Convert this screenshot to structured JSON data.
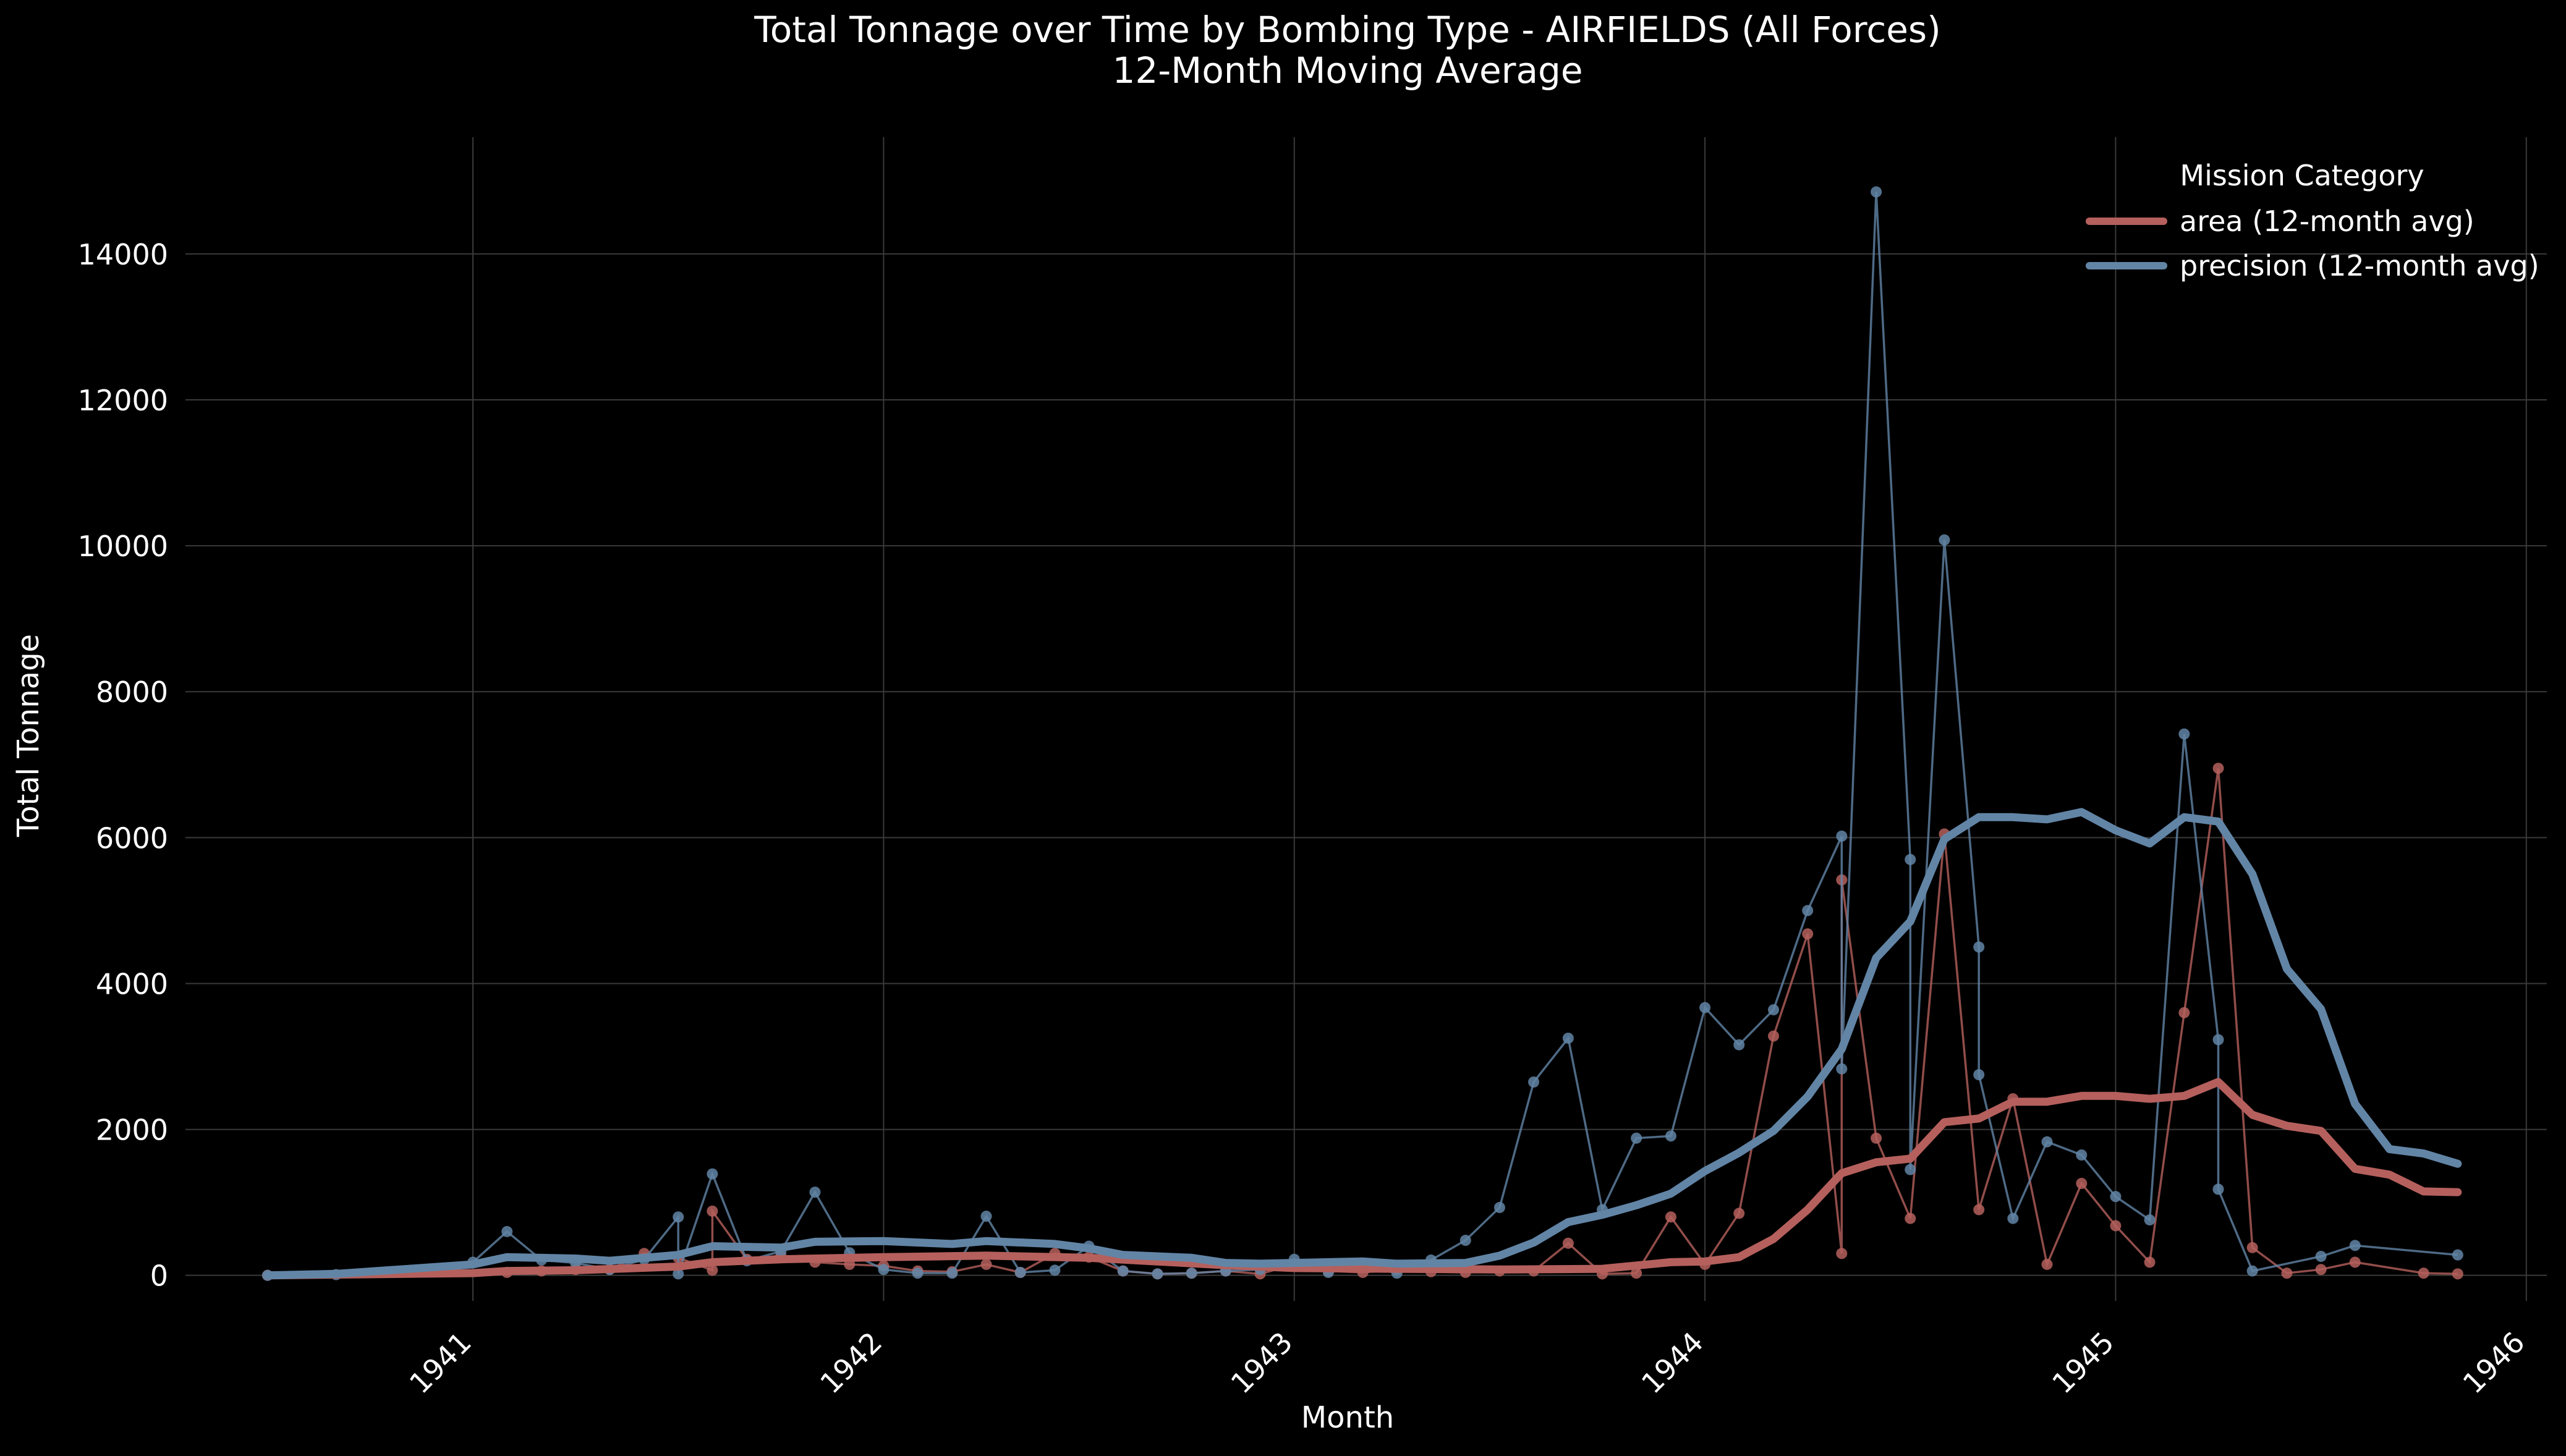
{
  "chart_data": {
    "type": "line",
    "title": "Total Tonnage over Time by Bombing Type - AIRFIELDS  (All Forces)",
    "subtitle": "12-Month Moving Average",
    "xlabel": "Month",
    "ylabel": "Total Tonnage",
    "xlim": [
      1940.3,
      1946.05
    ],
    "ylim": [
      -350,
      15600
    ],
    "x_ticks": [
      1941,
      1942,
      1943,
      1944,
      1945,
      1946
    ],
    "y_ticks": [
      0,
      2000,
      4000,
      6000,
      8000,
      10000,
      12000,
      14000
    ],
    "grid": true,
    "legend": {
      "title": "Mission Category",
      "placement": "top-right"
    },
    "colors": {
      "background": "#000000",
      "grid": "#3a3a3a",
      "text": "#ffffff",
      "area": "#b5605d",
      "precision": "#6285a6"
    },
    "series": [
      {
        "name": "area (12-month avg)",
        "kind": "moving_average",
        "color": "#b5605d",
        "points": [
          [
            1940.5,
            0
          ],
          [
            1940.667,
            10
          ],
          [
            1941.0,
            30
          ],
          [
            1941.083,
            60
          ],
          [
            1941.25,
            70
          ],
          [
            1941.5,
            120
          ],
          [
            1941.583,
            180
          ],
          [
            1941.75,
            220
          ],
          [
            1942.0,
            250
          ],
          [
            1942.25,
            270
          ],
          [
            1942.5,
            240
          ],
          [
            1942.667,
            190
          ],
          [
            1942.833,
            140
          ],
          [
            1942.917,
            120
          ],
          [
            1943.0,
            100
          ],
          [
            1943.25,
            90
          ],
          [
            1943.5,
            80
          ],
          [
            1943.75,
            90
          ],
          [
            1943.917,
            180
          ],
          [
            1944.0,
            190
          ],
          [
            1944.083,
            250
          ],
          [
            1944.167,
            500
          ],
          [
            1944.25,
            900
          ],
          [
            1944.333,
            1400
          ],
          [
            1944.417,
            1550
          ],
          [
            1944.5,
            1600
          ],
          [
            1944.583,
            2100
          ],
          [
            1944.667,
            2150
          ],
          [
            1944.75,
            2380
          ],
          [
            1944.833,
            2380
          ],
          [
            1944.917,
            2460
          ],
          [
            1945.0,
            2460
          ],
          [
            1945.083,
            2420
          ],
          [
            1945.167,
            2460
          ],
          [
            1945.25,
            2650
          ],
          [
            1945.333,
            2200
          ],
          [
            1945.417,
            2050
          ],
          [
            1945.5,
            1980
          ],
          [
            1945.583,
            1460
          ],
          [
            1945.667,
            1380
          ],
          [
            1945.75,
            1150
          ],
          [
            1945.833,
            1140
          ]
        ]
      },
      {
        "name": "precision (12-month avg)",
        "kind": "moving_average",
        "color": "#6285a6",
        "points": [
          [
            1940.5,
            0
          ],
          [
            1940.667,
            20
          ],
          [
            1941.0,
            150
          ],
          [
            1941.083,
            250
          ],
          [
            1941.25,
            230
          ],
          [
            1941.333,
            200
          ],
          [
            1941.5,
            280
          ],
          [
            1941.583,
            400
          ],
          [
            1941.75,
            380
          ],
          [
            1941.833,
            460
          ],
          [
            1942.0,
            470
          ],
          [
            1942.167,
            430
          ],
          [
            1942.25,
            470
          ],
          [
            1942.417,
            430
          ],
          [
            1942.5,
            370
          ],
          [
            1942.583,
            280
          ],
          [
            1942.75,
            240
          ],
          [
            1942.833,
            170
          ],
          [
            1942.917,
            160
          ],
          [
            1943.0,
            170
          ],
          [
            1943.167,
            190
          ],
          [
            1943.25,
            160
          ],
          [
            1943.417,
            170
          ],
          [
            1943.5,
            270
          ],
          [
            1943.583,
            450
          ],
          [
            1943.667,
            730
          ],
          [
            1943.75,
            830
          ],
          [
            1943.833,
            960
          ],
          [
            1943.917,
            1120
          ],
          [
            1944.0,
            1430
          ],
          [
            1944.083,
            1680
          ],
          [
            1944.167,
            1980
          ],
          [
            1944.25,
            2450
          ],
          [
            1944.333,
            3100
          ],
          [
            1944.417,
            4350
          ],
          [
            1944.5,
            4850
          ],
          [
            1944.583,
            5980
          ],
          [
            1944.667,
            6280
          ],
          [
            1944.75,
            6280
          ],
          [
            1944.833,
            6250
          ],
          [
            1944.917,
            6350
          ],
          [
            1945.0,
            6100
          ],
          [
            1945.083,
            5920
          ],
          [
            1945.167,
            6280
          ],
          [
            1945.25,
            6220
          ],
          [
            1945.333,
            5500
          ],
          [
            1945.417,
            4200
          ],
          [
            1945.5,
            3650
          ],
          [
            1945.583,
            2350
          ],
          [
            1945.667,
            1730
          ],
          [
            1945.75,
            1670
          ],
          [
            1945.833,
            1530
          ]
        ]
      },
      {
        "name": "area",
        "kind": "raw",
        "color": "#b5605d",
        "points": [
          [
            1940.5,
            0
          ],
          [
            1941.083,
            40
          ],
          [
            1941.167,
            60
          ],
          [
            1941.25,
            80
          ],
          [
            1941.333,
            80
          ],
          [
            1941.417,
            300
          ],
          [
            1941.5,
            240
          ],
          [
            1941.583,
            70
          ],
          [
            1941.583,
            880
          ],
          [
            1941.667,
            220
          ],
          [
            1941.75,
            270
          ],
          [
            1941.833,
            180
          ],
          [
            1941.917,
            150
          ],
          [
            1942.0,
            130
          ],
          [
            1942.083,
            60
          ],
          [
            1942.167,
            50
          ],
          [
            1942.25,
            150
          ],
          [
            1942.333,
            40
          ],
          [
            1942.417,
            300
          ],
          [
            1942.5,
            250
          ],
          [
            1942.583,
            60
          ],
          [
            1942.667,
            20
          ],
          [
            1942.75,
            30
          ],
          [
            1942.833,
            60
          ],
          [
            1942.917,
            20
          ],
          [
            1943.0,
            150
          ],
          [
            1943.083,
            60
          ],
          [
            1943.167,
            40
          ],
          [
            1943.25,
            80
          ],
          [
            1943.333,
            50
          ],
          [
            1943.417,
            40
          ],
          [
            1943.5,
            60
          ],
          [
            1943.583,
            60
          ],
          [
            1943.667,
            440
          ],
          [
            1943.75,
            20
          ],
          [
            1943.833,
            30
          ],
          [
            1943.917,
            800
          ],
          [
            1944.0,
            150
          ],
          [
            1944.083,
            850
          ],
          [
            1944.167,
            3280
          ],
          [
            1944.25,
            4680
          ],
          [
            1944.333,
            300
          ],
          [
            1944.333,
            5420
          ],
          [
            1944.417,
            1880
          ],
          [
            1944.5,
            780
          ],
          [
            1944.583,
            6050
          ],
          [
            1944.667,
            900
          ],
          [
            1944.75,
            2420
          ],
          [
            1944.833,
            150
          ],
          [
            1944.917,
            1260
          ],
          [
            1945.0,
            680
          ],
          [
            1945.083,
            180
          ],
          [
            1945.167,
            3600
          ],
          [
            1945.25,
            6950
          ],
          [
            1945.333,
            380
          ],
          [
            1945.417,
            30
          ],
          [
            1945.5,
            80
          ],
          [
            1945.583,
            180
          ],
          [
            1945.75,
            30
          ],
          [
            1945.833,
            20
          ]
        ]
      },
      {
        "name": "precision",
        "kind": "raw",
        "color": "#6285a6",
        "points": [
          [
            1940.5,
            0
          ],
          [
            1940.667,
            10
          ],
          [
            1941.0,
            180
          ],
          [
            1941.083,
            600
          ],
          [
            1941.167,
            210
          ],
          [
            1941.25,
            170
          ],
          [
            1941.333,
            80
          ],
          [
            1941.417,
            220
          ],
          [
            1941.5,
            800
          ],
          [
            1941.5,
            20
          ],
          [
            1941.583,
            1390
          ],
          [
            1941.667,
            200
          ],
          [
            1941.75,
            330
          ],
          [
            1941.833,
            1140
          ],
          [
            1941.917,
            310
          ],
          [
            1942.0,
            80
          ],
          [
            1942.083,
            30
          ],
          [
            1942.167,
            30
          ],
          [
            1942.25,
            810
          ],
          [
            1942.333,
            40
          ],
          [
            1942.417,
            70
          ],
          [
            1942.5,
            400
          ],
          [
            1942.583,
            60
          ],
          [
            1942.667,
            20
          ],
          [
            1942.75,
            30
          ],
          [
            1942.833,
            60
          ],
          [
            1942.917,
            80
          ],
          [
            1943.0,
            220
          ],
          [
            1943.083,
            40
          ],
          [
            1943.167,
            120
          ],
          [
            1943.25,
            30
          ],
          [
            1943.333,
            210
          ],
          [
            1943.417,
            480
          ],
          [
            1943.5,
            930
          ],
          [
            1943.583,
            2650
          ],
          [
            1943.667,
            3250
          ],
          [
            1943.75,
            900
          ],
          [
            1943.833,
            1880
          ],
          [
            1943.917,
            1910
          ],
          [
            1944.0,
            3670
          ],
          [
            1944.083,
            3160
          ],
          [
            1944.167,
            3640
          ],
          [
            1944.25,
            5000
          ],
          [
            1944.333,
            6020
          ],
          [
            1944.333,
            2830
          ],
          [
            1944.417,
            14850
          ],
          [
            1944.5,
            5700
          ],
          [
            1944.5,
            1450
          ],
          [
            1944.583,
            10080
          ],
          [
            1944.667,
            4500
          ],
          [
            1944.667,
            2750
          ],
          [
            1944.75,
            780
          ],
          [
            1944.833,
            1830
          ],
          [
            1944.917,
            1650
          ],
          [
            1945.0,
            1080
          ],
          [
            1945.083,
            760
          ],
          [
            1945.167,
            7420
          ],
          [
            1945.25,
            3230
          ],
          [
            1945.25,
            1180
          ],
          [
            1945.333,
            60
          ],
          [
            1945.5,
            260
          ],
          [
            1945.583,
            410
          ],
          [
            1945.833,
            280
          ]
        ]
      }
    ]
  }
}
